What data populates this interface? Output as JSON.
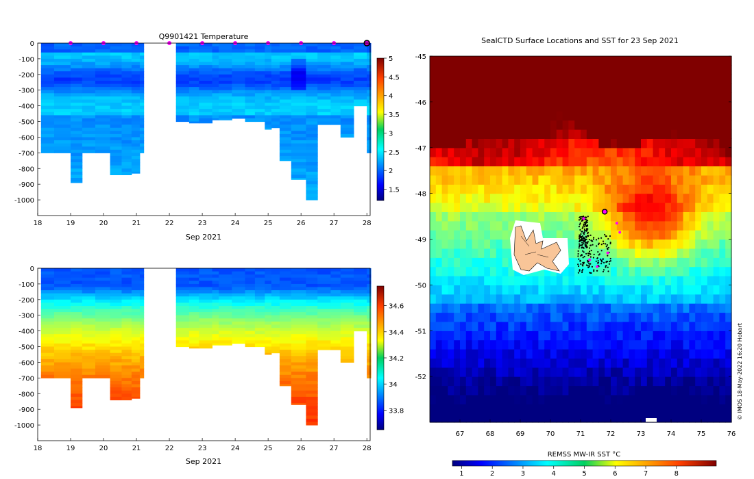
{
  "chart_data": [
    {
      "type": "heatmap",
      "title": "Q9901421  Temperature",
      "xlabel": "Sep 2021",
      "ylabel": "",
      "xlim": [
        18,
        28.1
      ],
      "ylim": [
        -1100,
        0
      ],
      "x_ticks": [
        "18",
        "19",
        "20",
        "21",
        "22",
        "23",
        "24",
        "25",
        "26",
        "27",
        "28"
      ],
      "y_ticks": [
        "0",
        "-100",
        "-200",
        "-300",
        "-400",
        "-500",
        "-600",
        "-700",
        "-800",
        "-900",
        "-1000"
      ],
      "colorbar": {
        "range": [
          1.2,
          5.0
        ],
        "ticks": [
          "1.5",
          "2",
          "2.5",
          "3",
          "3.5",
          "4",
          "4.5",
          "5"
        ],
        "colormap": "jet"
      },
      "surface_marker_days": [
        19,
        20,
        21,
        22,
        23,
        24,
        25,
        26,
        27
      ],
      "highlight_day": 28,
      "profiles_day": [
        18.1,
        18.5,
        19.0,
        19.35,
        19.75,
        20.2,
        20.55,
        20.85,
        21.1,
        22.0,
        22.2,
        22.6,
        22.9,
        23.3,
        23.5,
        23.9,
        24.3,
        24.6,
        24.9,
        25.1,
        25.35,
        25.7,
        26.15,
        26.5,
        26.9,
        27.2,
        27.6,
        28.0
      ],
      "profiles_max_depth": [
        700,
        700,
        890,
        700,
        700,
        840,
        840,
        830,
        700,
        0,
        500,
        510,
        510,
        490,
        490,
        480,
        500,
        500,
        550,
        540,
        750,
        870,
        1000,
        520,
        520,
        600,
        400,
        700
      ],
      "note": "Temperature ~2.0-2.6 deg C with colder ~1.7 deg C layer at 150-350 m"
    },
    {
      "type": "heatmap",
      "title": "",
      "xlabel": "Sep 2021",
      "ylabel": "",
      "xlim": [
        18,
        28.1
      ],
      "ylim": [
        -1100,
        0
      ],
      "x_ticks": [
        "18",
        "19",
        "20",
        "21",
        "22",
        "23",
        "24",
        "25",
        "26",
        "27",
        "28"
      ],
      "y_ticks": [
        "0",
        "-100",
        "-200",
        "-300",
        "-400",
        "-500",
        "-600",
        "-700",
        "-800",
        "-900",
        "-1000"
      ],
      "colorbar": {
        "range": [
          33.65,
          34.75
        ],
        "ticks": [
          "33.8",
          "34",
          "34.2",
          "34.4",
          "34.6"
        ],
        "colormap": "jet"
      },
      "note": "Salinity ~33.85 at surface increasing to ~34.7 at depth"
    },
    {
      "type": "heatmap",
      "title": "SealCTD Surface Locations and SST for 23 Sep 2021",
      "xlabel": "",
      "ylabel": "",
      "xlim": [
        66,
        76
      ],
      "ylim": [
        -53,
        -45
      ],
      "x_ticks": [
        "67",
        "68",
        "69",
        "70",
        "71",
        "72",
        "73",
        "74",
        "75",
        "76"
      ],
      "y_ticks": [
        "-45",
        "-46",
        "-47",
        "-48",
        "-49",
        "-50",
        "-51",
        "-52"
      ],
      "colorbar": {
        "label": "REMSS MW-IR SST °C",
        "range": [
          0.7,
          9.3
        ],
        "ticks": [
          "1",
          "2",
          "3",
          "4",
          "5",
          "6",
          "7",
          "8"
        ],
        "colormap": "jet"
      },
      "seal_positions_magenta": [
        [
          71.1,
          -48.55
        ],
        [
          72.2,
          -48.65
        ],
        [
          72.3,
          -48.85
        ],
        [
          71.3,
          -49.45
        ],
        [
          71.55,
          -49.6
        ],
        [
          71.9,
          -49.3
        ]
      ],
      "seal_latest_position": [
        71.8,
        -48.4
      ],
      "land": "Kerguelen Islands",
      "credit": "© IMOS 18-May-2022 16:20 Hobart"
    }
  ]
}
